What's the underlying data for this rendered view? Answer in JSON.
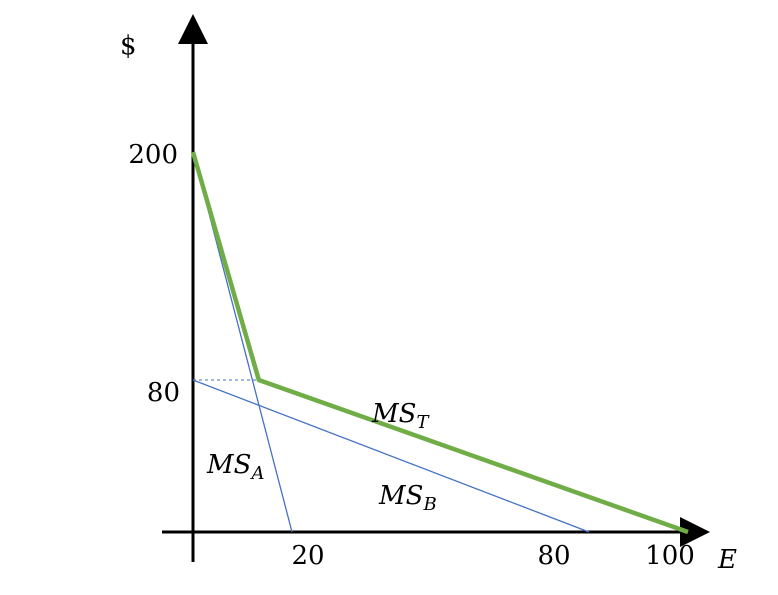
{
  "chart_data": {
    "type": "line",
    "ylabel": "$",
    "xlabel": "E",
    "x_ticks": [
      "20",
      "80",
      "100"
    ],
    "y_ticks": [
      "200",
      "80"
    ],
    "series": [
      {
        "name": "MS_T",
        "label_main": "MS",
        "label_sub": "T",
        "color": "#70ad47",
        "points": [
          [
            0,
            200
          ],
          [
            13.3,
            80
          ],
          [
            100,
            0
          ]
        ]
      },
      {
        "name": "MS_A",
        "label_main": "MS",
        "label_sub": "A",
        "color": "#4472c4",
        "points": [
          [
            0,
            200
          ],
          [
            20,
            0
          ]
        ]
      },
      {
        "name": "MS_B",
        "label_main": "MS",
        "label_sub": "B",
        "color": "#4472c4",
        "points": [
          [
            0,
            80
          ],
          [
            80,
            0
          ]
        ]
      }
    ],
    "dashed_connector": {
      "points": [
        [
          0,
          80
        ],
        [
          13.3,
          80
        ]
      ],
      "color": "#4472c4"
    },
    "grid": false
  }
}
